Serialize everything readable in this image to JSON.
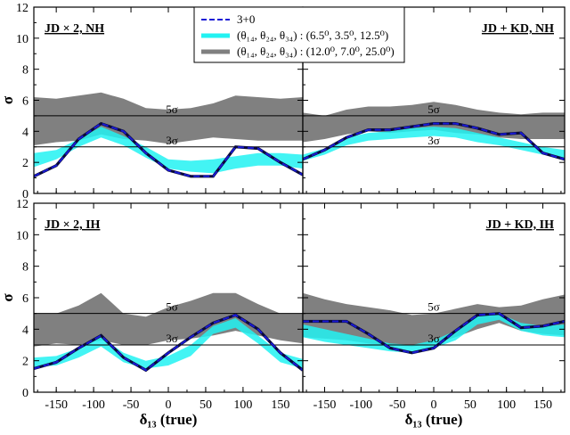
{
  "chart_data": {
    "type": "line",
    "xlabel": "δ₁₃ (true)",
    "ylabel": "σ",
    "xlim": [
      -180,
      180
    ],
    "ylim": [
      0,
      12
    ],
    "xticks": [
      -150,
      -100,
      -50,
      0,
      50,
      100,
      150
    ],
    "yticks": [
      0,
      2,
      4,
      6,
      8,
      10,
      12
    ],
    "hlines": [
      {
        "y": 5,
        "label": "5σ"
      },
      {
        "y": 3,
        "label": "3σ"
      }
    ],
    "legend": {
      "position": "top-center",
      "entries": [
        {
          "series": "line",
          "color": "#1a1ad6",
          "style": "dashed",
          "text": "3+0"
        },
        {
          "series": "band1",
          "color": "#22f2f2",
          "style": "solid",
          "text": "(θ₁₄, θ₂₄, θ₃₄) : (6.5⁰, 3.5⁰, 12.5⁰)"
        },
        {
          "series": "band2",
          "color": "#808080",
          "style": "solid",
          "text": "(θ₁₄, θ₂₄, θ₃₄) : (12.0⁰, 7.0⁰, 25.0⁰)"
        }
      ]
    },
    "panels": [
      {
        "label": "JD × 2, NH",
        "label_side": "left",
        "x": [
          -180,
          -150,
          -120,
          -90,
          -60,
          -30,
          0,
          30,
          60,
          90,
          120,
          150,
          180
        ],
        "line": [
          1.1,
          1.8,
          3.5,
          4.5,
          4.0,
          2.6,
          1.5,
          1.1,
          1.1,
          3.0,
          2.9,
          2.0,
          1.2
        ],
        "band1": {
          "low": [
            1.7,
            2.2,
            3.0,
            3.6,
            3.1,
            2.3,
            1.6,
            1.4,
            1.3,
            1.6,
            1.8,
            1.8,
            1.6
          ],
          "high": [
            2.6,
            2.8,
            3.5,
            4.3,
            3.7,
            3.0,
            2.2,
            2.1,
            2.2,
            2.4,
            2.6,
            2.6,
            2.5
          ]
        },
        "band2": {
          "low": [
            3.1,
            3.3,
            3.4,
            3.8,
            3.5,
            3.4,
            3.2,
            3.4,
            3.6,
            3.5,
            3.4,
            3.4,
            3.4
          ],
          "high": [
            6.2,
            6.1,
            6.3,
            6.5,
            6.1,
            5.5,
            5.4,
            5.5,
            5.8,
            6.3,
            6.2,
            6.1,
            6.2
          ]
        }
      },
      {
        "label": "JD + KD, NH",
        "label_side": "right",
        "x": [
          -180,
          -150,
          -120,
          -90,
          -60,
          -30,
          0,
          30,
          60,
          90,
          120,
          150,
          180
        ],
        "line": [
          2.2,
          2.8,
          3.6,
          4.1,
          4.1,
          4.3,
          4.5,
          4.5,
          4.2,
          3.8,
          3.9,
          2.6,
          2.2
        ],
        "band1": {
          "low": [
            2.1,
            2.5,
            3.1,
            3.4,
            3.5,
            3.6,
            3.7,
            3.6,
            3.3,
            3.1,
            2.8,
            2.5,
            2.3
          ],
          "high": [
            2.5,
            2.9,
            3.6,
            3.9,
            4.0,
            4.2,
            4.3,
            4.2,
            3.9,
            3.6,
            3.3,
            3.0,
            2.8
          ]
        },
        "band2": {
          "low": [
            3.3,
            3.5,
            3.8,
            4.0,
            3.9,
            4.0,
            4.1,
            3.9,
            3.8,
            3.6,
            3.5,
            3.5,
            3.5
          ],
          "high": [
            5.2,
            5.0,
            5.4,
            5.6,
            5.6,
            5.7,
            5.9,
            5.7,
            5.4,
            5.2,
            5.1,
            5.2,
            5.2
          ]
        }
      },
      {
        "label": "JD × 2, IH",
        "label_side": "left",
        "x": [
          -180,
          -150,
          -120,
          -90,
          -60,
          -30,
          0,
          30,
          60,
          90,
          120,
          150,
          180
        ],
        "line": [
          1.5,
          1.9,
          2.8,
          3.6,
          2.2,
          1.4,
          2.5,
          3.5,
          4.4,
          4.9,
          4.0,
          2.5,
          1.4
        ],
        "band1": {
          "low": [
            1.6,
            1.7,
            2.2,
            2.9,
            1.9,
            1.5,
            1.7,
            2.3,
            3.7,
            4.1,
            3.1,
            1.9,
            1.5
          ],
          "high": [
            2.2,
            2.3,
            2.8,
            3.5,
            2.5,
            2.0,
            2.3,
            3.0,
            4.2,
            4.7,
            3.6,
            2.5,
            2.1
          ]
        },
        "band2": {
          "low": [
            2.9,
            3.1,
            3.0,
            3.3,
            3.0,
            3.0,
            3.3,
            3.4,
            3.6,
            3.9,
            3.6,
            3.3,
            3.1
          ],
          "high": [
            5.0,
            5.0,
            5.5,
            6.3,
            5.0,
            4.8,
            5.4,
            5.8,
            6.3,
            6.3,
            5.6,
            5.0,
            5.0
          ]
        }
      },
      {
        "label": "JD + KD, IH",
        "label_side": "right",
        "x": [
          -180,
          -150,
          -120,
          -90,
          -60,
          -30,
          0,
          30,
          60,
          90,
          120,
          150,
          180
        ],
        "line": [
          4.5,
          4.5,
          4.5,
          3.7,
          2.8,
          2.5,
          2.8,
          3.9,
          4.9,
          5.0,
          4.1,
          4.2,
          4.5
        ],
        "band1": {
          "low": [
            3.5,
            3.2,
            3.0,
            2.8,
            2.6,
            2.5,
            2.8,
            3.3,
            4.3,
            4.6,
            3.9,
            3.6,
            3.5
          ],
          "high": [
            4.3,
            4.0,
            3.7,
            3.4,
            3.1,
            3.0,
            3.3,
            3.9,
            4.8,
            5.0,
            4.4,
            4.2,
            4.3
          ]
        },
        "band2": {
          "low": [
            3.5,
            3.4,
            3.3,
            3.1,
            3.0,
            2.9,
            3.1,
            3.5,
            4.0,
            4.4,
            3.9,
            3.7,
            3.6
          ],
          "high": [
            6.3,
            5.9,
            5.6,
            5.4,
            5.2,
            4.9,
            5.0,
            5.3,
            5.6,
            5.4,
            5.5,
            5.9,
            6.2
          ]
        }
      }
    ]
  }
}
